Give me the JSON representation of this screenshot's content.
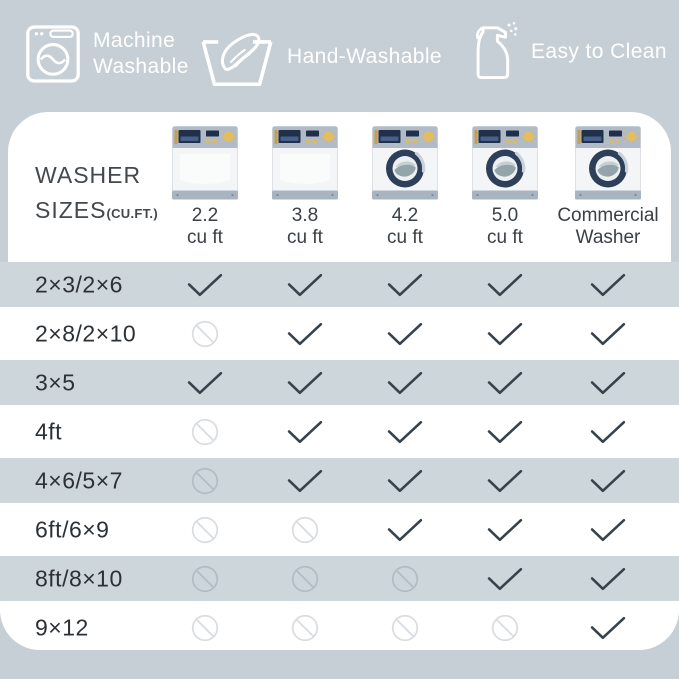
{
  "features": [
    {
      "label": "Machine\nWashable",
      "icon": "washing-machine-icon"
    },
    {
      "label": "Hand-Washable",
      "icon": "hand-wash-icon"
    },
    {
      "label": "Easy to Clean",
      "icon": "spray-bottle-icon"
    }
  ],
  "table": {
    "title_line1": "WASHER",
    "title_line2": "SIZES",
    "title_paren": "(CU.FT.)",
    "columns": [
      {
        "label": "2.2\ncu ft",
        "washer_type": "top-load"
      },
      {
        "label": "3.8\ncu ft",
        "washer_type": "top-load"
      },
      {
        "label": "4.2\ncu ft",
        "washer_type": "front-load"
      },
      {
        "label": "5.0\ncu ft",
        "washer_type": "front-load"
      },
      {
        "label": "Commercial\nWasher",
        "washer_type": "front-load"
      }
    ],
    "rows": [
      {
        "label": "2×3/2×6",
        "cells": [
          "yes",
          "yes",
          "yes",
          "yes",
          "yes"
        ]
      },
      {
        "label": "2×8/2×10",
        "cells": [
          "no",
          "yes",
          "yes",
          "yes",
          "yes"
        ]
      },
      {
        "label": "3×5",
        "cells": [
          "yes",
          "yes",
          "yes",
          "yes",
          "yes"
        ]
      },
      {
        "label": "4ft",
        "cells": [
          "no",
          "yes",
          "yes",
          "yes",
          "yes"
        ]
      },
      {
        "label": "4×6/5×7",
        "cells": [
          "no",
          "yes",
          "yes",
          "yes",
          "yes"
        ]
      },
      {
        "label": "6ft/6×9",
        "cells": [
          "no",
          "no",
          "yes",
          "yes",
          "yes"
        ]
      },
      {
        "label": "8ft/8×10",
        "cells": [
          "no",
          "no",
          "no",
          "yes",
          "yes"
        ]
      },
      {
        "label": "9×12",
        "cells": [
          "no",
          "no",
          "no",
          "no",
          "yes"
        ]
      }
    ]
  },
  "colors": {
    "page_background": "#c6cfd5",
    "row_stripe": "#cdd6db",
    "card_background": "#ffffff",
    "check": "#37424c",
    "prohibited_on_white": "#d9dce0",
    "prohibited_on_gray": "#b3bcc2",
    "feature_icons_text": "#ffffff",
    "washer_door_navy": "#2e3f59",
    "washer_knob_gold": "#e3bd5e"
  }
}
